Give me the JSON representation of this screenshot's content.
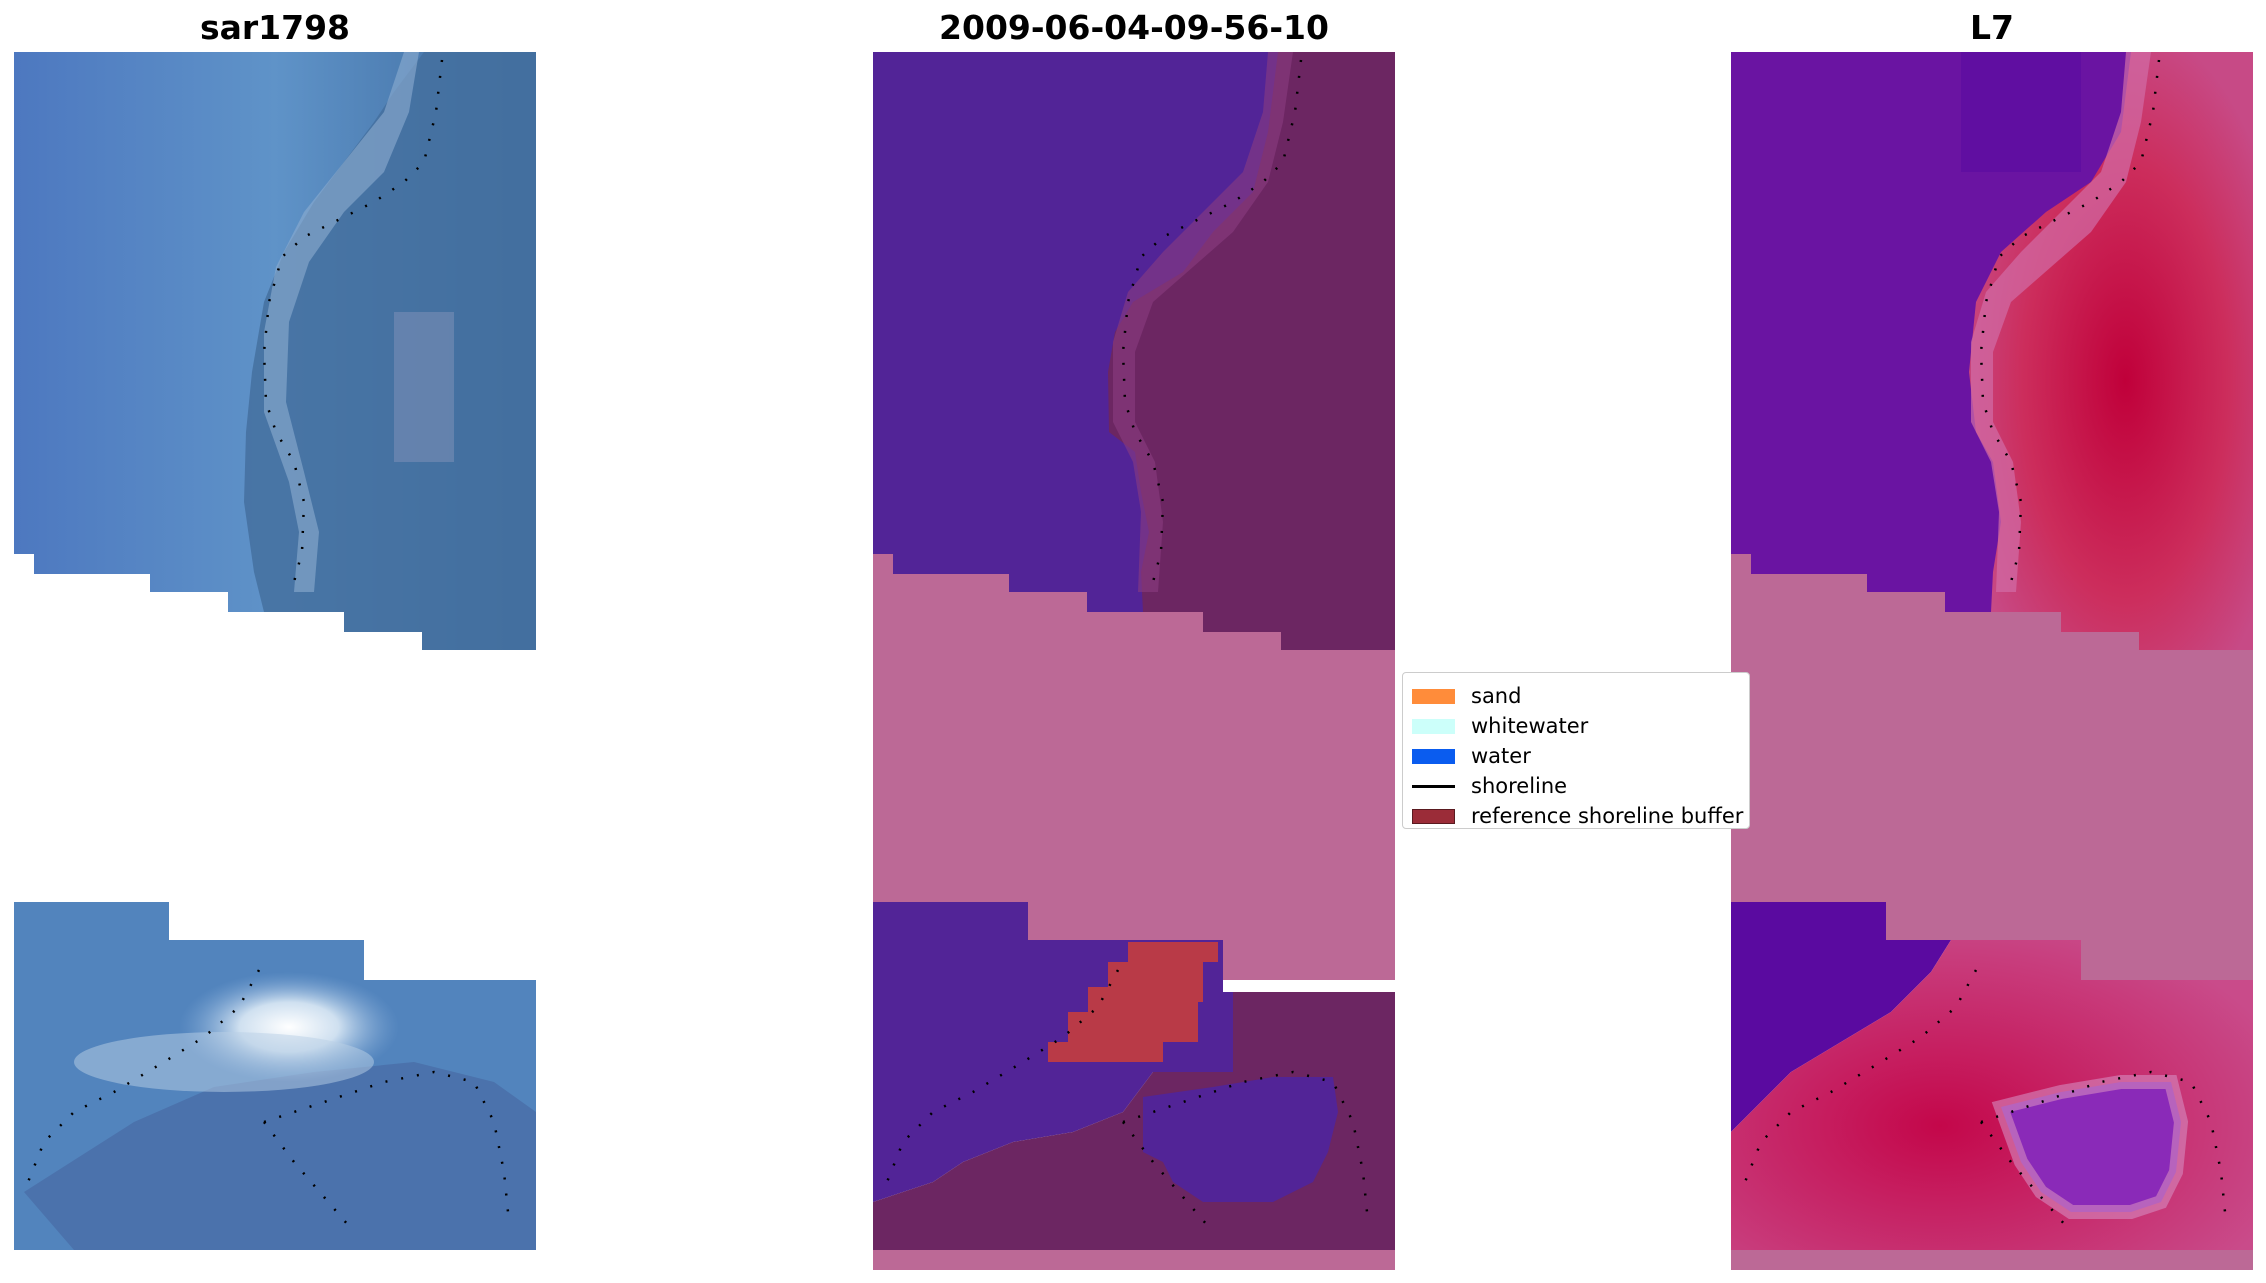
{
  "panels": [
    {
      "title": "sar1798"
    },
    {
      "title": "2009-06-04-09-56-10"
    },
    {
      "title": "L7"
    }
  ],
  "legend": {
    "items": [
      {
        "label": "sand",
        "kind": "patch",
        "color": "#ff8c3a"
      },
      {
        "label": "whitewater",
        "kind": "patch",
        "color": "#ccfffa"
      },
      {
        "label": "water",
        "kind": "patch",
        "color": "#0a5cef"
      },
      {
        "label": "shoreline",
        "kind": "line",
        "color": "#000000"
      },
      {
        "label": "reference shoreline buffer",
        "kind": "patch",
        "color": "#9b2c38"
      }
    ]
  },
  "colors": {
    "rgb_water": "#4f7fc4",
    "rgb_land": "#3f6aa0",
    "rgb_surf": "#dfe8f4",
    "class_water": "#522497",
    "class_land": "#6c2662",
    "class_sand_highlight": "#b93a47",
    "nodata_overlay": "#bc6996",
    "mndwi_low": "#6a14a2",
    "mndwi_high": "#c2124a",
    "shoreline": "#000000"
  }
}
